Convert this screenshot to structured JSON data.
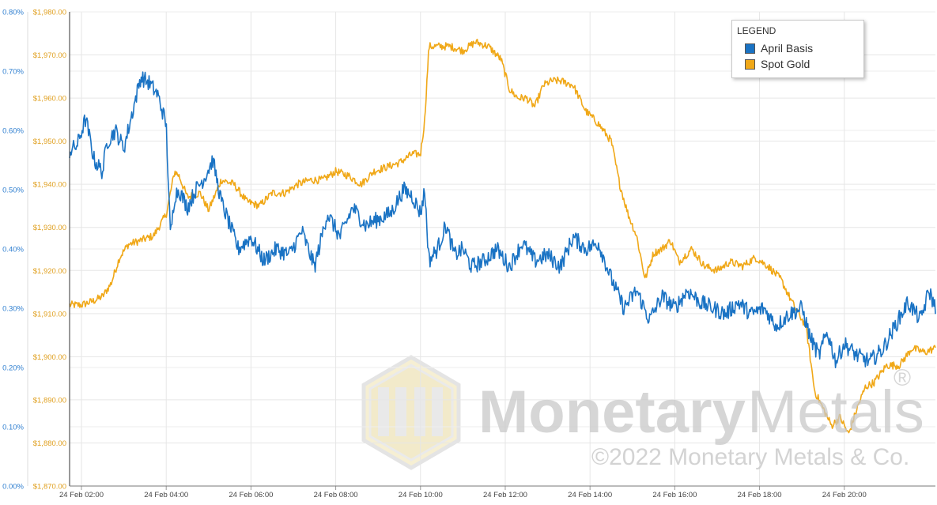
{
  "chart_data": {
    "type": "line",
    "title": "",
    "xlabel": "",
    "ylabel_left": "",
    "ylabel_right": "",
    "x_ticks": [
      "24 Feb 02:00",
      "24 Feb 04:00",
      "24 Feb 06:00",
      "24 Feb 08:00",
      "24 Feb 10:00",
      "24 Feb 12:00",
      "24 Feb 14:00",
      "24 Feb 16:00",
      "24 Feb 18:00",
      "24 Feb 20:00"
    ],
    "x_tick_hours": [
      2,
      4,
      6,
      8,
      10,
      12,
      14,
      16,
      18,
      20
    ],
    "x_range_hours": [
      1.72,
      22.15
    ],
    "y_left_ticks": [
      "0.00%",
      "0.10%",
      "0.20%",
      "0.30%",
      "0.40%",
      "0.50%",
      "0.60%",
      "0.70%",
      "0.80%"
    ],
    "y_left_range": [
      0.0,
      0.8
    ],
    "y_right_ticks": [
      "$1,870.00",
      "$1,880.00",
      "$1,890.00",
      "$1,900.00",
      "$1,910.00",
      "$1,920.00",
      "$1,930.00",
      "$1,940.00",
      "$1,950.00",
      "$1,960.00",
      "$1,970.00",
      "$1,980.00"
    ],
    "y_right_range": [
      1870,
      1980
    ],
    "grid": true,
    "legend": {
      "title": "LEGEND",
      "position": "top-right"
    },
    "series": [
      {
        "name": "April Basis",
        "axis": "left",
        "color": "#1a73c4",
        "x": [
          1.72,
          1.9,
          2.1,
          2.3,
          2.5,
          2.6,
          2.8,
          3.0,
          3.2,
          3.4,
          3.6,
          3.8,
          4.0,
          4.1,
          4.2,
          4.3,
          4.5,
          4.7,
          4.9,
          5.1,
          5.3,
          5.5,
          5.7,
          6.0,
          6.3,
          6.6,
          6.9,
          7.2,
          7.5,
          7.8,
          8.1,
          8.4,
          8.7,
          9.0,
          9.3,
          9.6,
          9.8,
          10.0,
          10.1,
          10.2,
          10.4,
          10.6,
          10.8,
          11.0,
          11.2,
          11.5,
          11.8,
          12.1,
          12.4,
          12.7,
          13.0,
          13.3,
          13.6,
          13.9,
          14.2,
          14.5,
          14.8,
          15.1,
          15.4,
          15.7,
          16.0,
          16.3,
          16.6,
          16.9,
          17.2,
          17.5,
          17.8,
          18.1,
          18.4,
          18.7,
          19.0,
          19.2,
          19.4,
          19.6,
          19.8,
          20.0,
          20.3,
          20.6,
          20.9,
          21.2,
          21.5,
          21.8,
          22.0,
          22.15
        ],
        "y": [
          0.565,
          0.575,
          0.62,
          0.55,
          0.53,
          0.58,
          0.6,
          0.57,
          0.63,
          0.69,
          0.68,
          0.66,
          0.61,
          0.42,
          0.49,
          0.5,
          0.47,
          0.5,
          0.52,
          0.55,
          0.48,
          0.44,
          0.4,
          0.42,
          0.38,
          0.4,
          0.39,
          0.43,
          0.37,
          0.46,
          0.42,
          0.47,
          0.44,
          0.45,
          0.46,
          0.5,
          0.49,
          0.46,
          0.5,
          0.38,
          0.4,
          0.44,
          0.39,
          0.4,
          0.37,
          0.38,
          0.4,
          0.37,
          0.41,
          0.38,
          0.39,
          0.37,
          0.42,
          0.4,
          0.41,
          0.35,
          0.3,
          0.33,
          0.28,
          0.32,
          0.3,
          0.33,
          0.31,
          0.3,
          0.29,
          0.31,
          0.29,
          0.3,
          0.27,
          0.29,
          0.3,
          0.25,
          0.22,
          0.26,
          0.21,
          0.24,
          0.22,
          0.21,
          0.23,
          0.27,
          0.31,
          0.28,
          0.33,
          0.3
        ],
        "display_y_right": [
          1948,
          1950,
          1957,
          1940,
          1940,
          1947,
          1950,
          1946,
          1955,
          1965,
          1962,
          1958,
          1950,
          1925,
          1930,
          1932,
          1928,
          1932,
          1934,
          1937,
          1928,
          1922,
          1920,
          1922,
          1917,
          1920,
          1918,
          1923,
          1915,
          1930,
          1925,
          1930,
          1928,
          1929,
          1930,
          1937,
          1935,
          1930,
          1938,
          1920,
          1922,
          1928,
          1918,
          1920,
          1916,
          1917,
          1921,
          1916,
          1922,
          1918,
          1919,
          1916,
          1924,
          1920,
          1921,
          1913,
          1907,
          1911,
          1903,
          1909,
          1906,
          1910,
          1908,
          1906,
          1905,
          1908,
          1905,
          1906,
          1902,
          1905,
          1906,
          1899,
          1895,
          1900,
          1893,
          1897,
          1894,
          1893,
          1896,
          1901,
          1907,
          1903,
          1910,
          1906
        ]
      },
      {
        "name": "Spot Gold",
        "axis": "right",
        "color": "#f0a818",
        "x": [
          1.72,
          2.0,
          2.3,
          2.5,
          2.7,
          2.9,
          3.1,
          3.4,
          3.7,
          4.0,
          4.2,
          4.3,
          4.5,
          4.8,
          5.0,
          5.3,
          5.6,
          5.9,
          6.2,
          6.5,
          6.8,
          7.1,
          7.4,
          7.7,
          8.0,
          8.3,
          8.6,
          8.9,
          9.2,
          9.5,
          9.8,
          10.0,
          10.1,
          10.2,
          10.4,
          10.7,
          11.0,
          11.3,
          11.6,
          11.9,
          12.1,
          12.3,
          12.5,
          12.7,
          12.9,
          13.1,
          13.3,
          13.6,
          13.9,
          14.2,
          14.5,
          14.7,
          14.9,
          15.1,
          15.3,
          15.5,
          15.7,
          15.9,
          16.1,
          16.4,
          16.7,
          17.0,
          17.3,
          17.6,
          17.9,
          18.2,
          18.5,
          18.8,
          19.1,
          19.3,
          19.5,
          19.7,
          19.9,
          20.1,
          20.3,
          20.5,
          20.7,
          21.0,
          21.3,
          21.6,
          21.9,
          22.15
        ],
        "y": [
          1912,
          1912,
          1913,
          1914,
          1917,
          1923,
          1926,
          1927,
          1928,
          1933,
          1943,
          1942,
          1937,
          1938,
          1934,
          1941,
          1940,
          1936,
          1935,
          1938,
          1938,
          1940,
          1941,
          1941,
          1943,
          1942,
          1940,
          1943,
          1944,
          1945,
          1947,
          1947,
          1955,
          1972,
          1972,
          1972,
          1971,
          1973,
          1972,
          1969,
          1962,
          1960,
          1960,
          1958,
          1963,
          1964,
          1964,
          1963,
          1957,
          1954,
          1950,
          1940,
          1933,
          1928,
          1918,
          1924,
          1925,
          1927,
          1922,
          1925,
          1921,
          1920,
          1922,
          1921,
          1923,
          1921,
          1918,
          1912,
          1907,
          1892,
          1888,
          1884,
          1886,
          1882,
          1888,
          1893,
          1894,
          1898,
          1898,
          1902,
          1901,
          1902
        ]
      }
    ]
  },
  "legend_title": "LEGEND",
  "watermark": {
    "brand_word1": "Monetary",
    "brand_word2": "Metals",
    "registered": "®",
    "copyright": "©2022 Monetary Metals & Co."
  }
}
